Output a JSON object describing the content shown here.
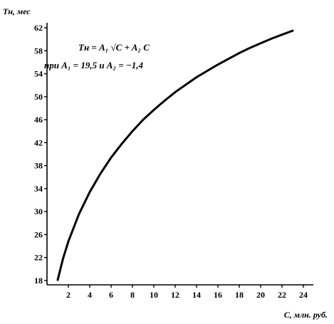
{
  "chart_data": {
    "type": "line",
    "ylabel": "Tн, мес",
    "xlabel": "C, млн. руб.",
    "xlim": [
      0,
      25
    ],
    "ylim": [
      16,
      63
    ],
    "xticks": [
      "2",
      "4",
      "6",
      "8",
      "10",
      "12",
      "14",
      "16",
      "18",
      "20",
      "22",
      "24"
    ],
    "yticks": [
      "18",
      "22",
      "26",
      "30",
      "34",
      "38",
      "42",
      "46",
      "50",
      "54",
      "58",
      "62"
    ],
    "annotations": {
      "formula_line1": "Tн = A₁ √C + A₂ C",
      "formula_line2": "при A₁ = 19,5 и A₂ = −1,4"
    },
    "series": [
      {
        "x": [
          1,
          1.5,
          2,
          3,
          4,
          5,
          6,
          7,
          8,
          9,
          10,
          11,
          12,
          13,
          14,
          15,
          16,
          17,
          18,
          19,
          20,
          21,
          22,
          23
        ],
        "y": [
          18.1,
          21.8,
          24.8,
          29.6,
          33.4,
          36.6,
          39.4,
          41.8,
          44.0,
          46.0,
          47.7,
          49.3,
          50.8,
          52.1,
          53.4,
          54.5,
          55.6,
          56.6,
          57.6,
          58.5,
          59.3,
          60.1,
          60.8,
          61.5
        ]
      }
    ],
    "grid": false
  }
}
